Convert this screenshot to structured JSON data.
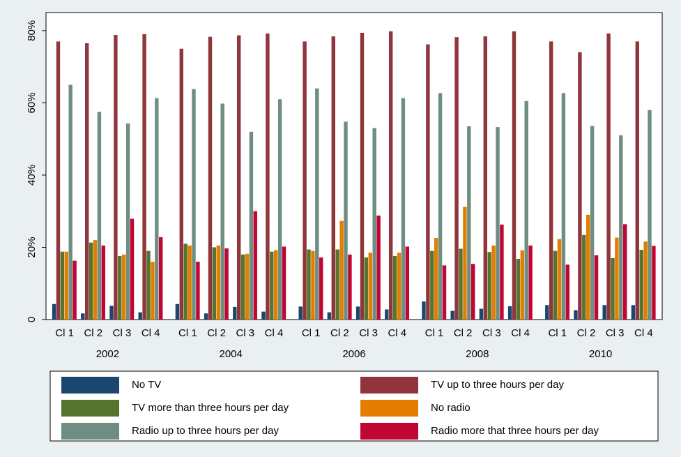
{
  "chart_data": {
    "type": "bar",
    "categories": [
      "Cl 1",
      "Cl 2",
      "Cl 3",
      "Cl 4",
      "Cl 1",
      "Cl 2",
      "Cl 3",
      "Cl 4",
      "Cl 1",
      "Cl 2",
      "Cl 3",
      "Cl 4",
      "Cl 1",
      "Cl 2",
      "Cl 3",
      "Cl 4",
      "Cl 1",
      "Cl 2",
      "Cl 3",
      "Cl 4"
    ],
    "groups": [
      "2002",
      "2004",
      "2006",
      "2008",
      "2010"
    ],
    "series": [
      {
        "name": "No TV",
        "color": "#1a476f",
        "values": [
          4.3,
          1.7,
          3.8,
          2.0,
          4.3,
          1.7,
          3.5,
          2.2,
          3.6,
          2.0,
          3.6,
          2.8,
          5.0,
          2.4,
          3.0,
          3.7,
          4.0,
          2.6,
          4.0,
          4.0
        ]
      },
      {
        "name": "TV up to three hours per day",
        "color": "#90353b",
        "values": [
          77,
          76.5,
          78.8,
          79,
          75,
          78.3,
          78.7,
          79.2,
          77,
          78.4,
          79.4,
          79.8,
          76.2,
          78.2,
          78.4,
          79.8,
          77,
          74,
          79.2,
          77
        ]
      },
      {
        "name": "TV more than three hours per day",
        "color": "#55752f",
        "values": [
          18.8,
          21.3,
          17.6,
          19,
          21,
          20,
          18,
          18.8,
          19.4,
          19.4,
          17.2,
          17.6,
          19,
          19.6,
          18.7,
          16.8,
          19,
          23.4,
          17,
          19.3
        ]
      },
      {
        "name": "No radio",
        "color": "#e37e00",
        "values": [
          18.8,
          22,
          18,
          16,
          20.5,
          20.5,
          18.2,
          19.2,
          19,
          27.3,
          18.5,
          18.5,
          22.6,
          31.2,
          20.5,
          19.2,
          22.3,
          29,
          22.7,
          21.6
        ]
      },
      {
        "name": "Radio up to three hours per day",
        "color": "#6e8e84",
        "values": [
          65,
          57.5,
          54.3,
          61.3,
          63.8,
          59.8,
          52,
          61,
          64,
          54.8,
          53,
          61.3,
          62.7,
          53.5,
          53.3,
          60.5,
          62.7,
          53.6,
          51,
          58
        ]
      },
      {
        "name": "Radio more that three hours per day",
        "color": "#c10534",
        "values": [
          16.3,
          20.5,
          27.9,
          22.8,
          16,
          19.7,
          30,
          20.2,
          17.2,
          18,
          28.8,
          20.2,
          15,
          15.4,
          26.3,
          20.5,
          15.2,
          17.8,
          26.4,
          20.4
        ]
      }
    ],
    "ylim": [
      0,
      85
    ],
    "yticks": [
      0,
      {
        "value": 20,
        "label": "20%"
      },
      {
        "value": 40,
        "label": "40%"
      },
      {
        "value": 60,
        "label": "60%"
      },
      {
        "value": 80,
        "label": "80%"
      }
    ],
    "grid": false
  }
}
